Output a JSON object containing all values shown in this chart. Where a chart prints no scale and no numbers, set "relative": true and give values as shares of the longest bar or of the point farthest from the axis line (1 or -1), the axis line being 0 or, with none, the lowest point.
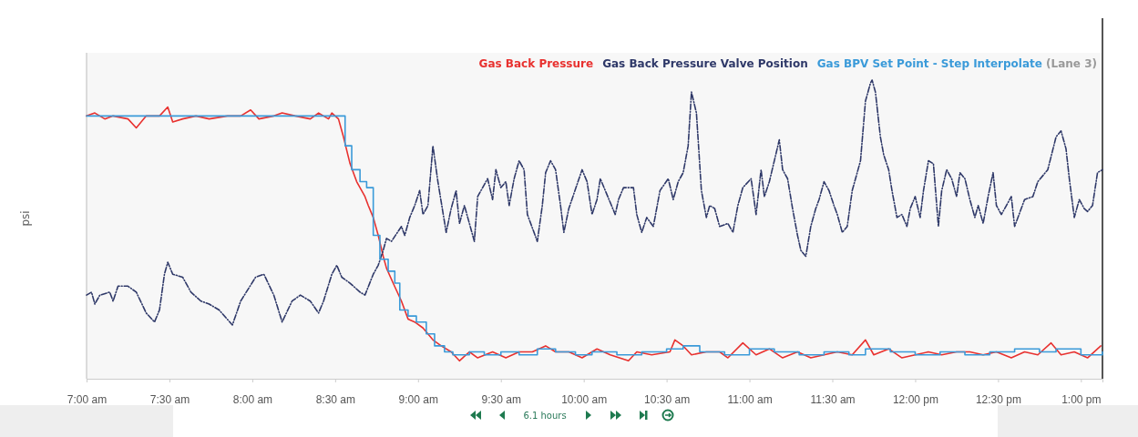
{
  "chart_data": {
    "type": "line",
    "relative": true,
    "ylabel": "psi",
    "legend": "top right",
    "annotations": [
      "(Lane 3)",
      "6.1 hours"
    ],
    "xlim": [
      7,
      13.13
    ],
    "xticks": [
      {
        "value": 7,
        "label": "7:00 am"
      },
      {
        "value": 7.5,
        "label": "7:30 am"
      },
      {
        "value": 8,
        "label": "8:00 am"
      },
      {
        "value": 8.5,
        "label": "8:30 am"
      },
      {
        "value": 9,
        "label": "9:00 am"
      },
      {
        "value": 9.5,
        "label": "9:30 am"
      },
      {
        "value": 10,
        "label": "10:00 am"
      },
      {
        "value": 10.5,
        "label": "10:30 am"
      },
      {
        "value": 11,
        "label": "11:00 am"
      },
      {
        "value": 11.5,
        "label": "11:30 am"
      },
      {
        "value": 12,
        "label": "12:00 pm"
      },
      {
        "value": 12.5,
        "label": "12:30 pm"
      },
      {
        "value": 13,
        "label": "1:00 pm"
      }
    ],
    "series": [
      {
        "name": "Gas Back Pressure",
        "color": "#e8312f",
        "type": "line",
        "line_style": "solid",
        "x": [
          7.0,
          7.05,
          7.11,
          7.16,
          7.25,
          7.3,
          7.36,
          7.44,
          7.49,
          7.52,
          7.58,
          7.66,
          7.74,
          7.85,
          7.93,
          7.99,
          8.04,
          8.13,
          8.18,
          8.26,
          8.35,
          8.4,
          8.46,
          8.48,
          8.52,
          8.55,
          8.59,
          8.63,
          8.68,
          8.7,
          8.73,
          8.76,
          8.79,
          8.81,
          8.85,
          8.9,
          8.94,
          8.98,
          9.03,
          9.09,
          9.14,
          9.2,
          9.25,
          9.31,
          9.36,
          9.45,
          9.53,
          9.61,
          9.69,
          9.77,
          9.83,
          9.91,
          9.99,
          10.08,
          10.16,
          10.27,
          10.32,
          10.41,
          10.52,
          10.55,
          10.6,
          10.65,
          10.74,
          10.82,
          10.87,
          10.96,
          11.04,
          11.12,
          11.2,
          11.29,
          11.37,
          11.45,
          11.53,
          11.62,
          11.7,
          11.75,
          11.84,
          11.92,
          12.0,
          12.08,
          12.16,
          12.25,
          12.33,
          12.41,
          12.49,
          12.58,
          12.66,
          12.74,
          12.82,
          12.88,
          12.96,
          13.04,
          13.12
        ],
        "values": [
          0.88,
          0.89,
          0.87,
          0.88,
          0.87,
          0.84,
          0.88,
          0.88,
          0.91,
          0.86,
          0.87,
          0.88,
          0.87,
          0.88,
          0.88,
          0.9,
          0.87,
          0.88,
          0.89,
          0.88,
          0.87,
          0.89,
          0.87,
          0.89,
          0.87,
          0.81,
          0.72,
          0.66,
          0.61,
          0.58,
          0.54,
          0.48,
          0.41,
          0.37,
          0.32,
          0.26,
          0.2,
          0.19,
          0.17,
          0.13,
          0.11,
          0.09,
          0.06,
          0.09,
          0.07,
          0.09,
          0.07,
          0.09,
          0.09,
          0.11,
          0.09,
          0.09,
          0.07,
          0.1,
          0.08,
          0.06,
          0.09,
          0.08,
          0.09,
          0.13,
          0.11,
          0.08,
          0.09,
          0.09,
          0.07,
          0.12,
          0.08,
          0.1,
          0.07,
          0.09,
          0.07,
          0.08,
          0.09,
          0.08,
          0.13,
          0.08,
          0.1,
          0.07,
          0.08,
          0.09,
          0.08,
          0.09,
          0.09,
          0.08,
          0.09,
          0.07,
          0.09,
          0.08,
          0.12,
          0.08,
          0.09,
          0.07,
          0.11
        ]
      },
      {
        "name": "Gas Back Pressure Valve Position",
        "color": "#2e3868",
        "type": "line",
        "line_style": "dashed",
        "x": [
          7.0,
          7.03,
          7.05,
          7.08,
          7.14,
          7.16,
          7.19,
          7.25,
          7.3,
          7.36,
          7.41,
          7.44,
          7.47,
          7.49,
          7.52,
          7.58,
          7.63,
          7.69,
          7.74,
          7.8,
          7.88,
          7.93,
          8.02,
          8.07,
          8.13,
          8.18,
          8.24,
          8.29,
          8.35,
          8.4,
          8.43,
          8.48,
          8.51,
          8.54,
          8.59,
          8.65,
          8.68,
          8.73,
          8.76,
          8.79,
          8.81,
          8.84,
          8.9,
          8.92,
          8.95,
          8.98,
          9.01,
          9.03,
          9.06,
          9.09,
          9.12,
          9.17,
          9.2,
          9.23,
          9.25,
          9.28,
          9.34,
          9.36,
          9.42,
          9.45,
          9.47,
          9.5,
          9.53,
          9.55,
          9.58,
          9.61,
          9.64,
          9.66,
          9.72,
          9.75,
          9.77,
          9.8,
          9.83,
          9.86,
          9.88,
          9.91,
          9.99,
          10.02,
          10.05,
          10.08,
          10.1,
          10.13,
          10.19,
          10.21,
          10.24,
          10.3,
          10.32,
          10.35,
          10.38,
          10.42,
          10.46,
          10.51,
          10.54,
          10.57,
          10.6,
          10.63,
          10.65,
          10.68,
          10.71,
          10.74,
          10.76,
          10.79,
          10.82,
          10.87,
          10.9,
          10.93,
          10.96,
          11.01,
          11.04,
          11.07,
          11.09,
          11.12,
          11.15,
          11.18,
          11.2,
          11.23,
          11.26,
          11.29,
          11.31,
          11.34,
          11.37,
          11.4,
          11.42,
          11.45,
          11.48,
          11.51,
          11.53,
          11.56,
          11.59,
          11.62,
          11.64,
          11.67,
          11.7,
          11.73,
          11.74,
          11.76,
          11.79,
          11.81,
          11.84,
          11.86,
          11.89,
          11.92,
          11.95,
          11.97,
          12.0,
          12.03,
          12.05,
          12.08,
          12.11,
          12.14,
          12.16,
          12.19,
          12.22,
          12.25,
          12.27,
          12.3,
          12.33,
          12.36,
          12.38,
          12.41,
          12.44,
          12.47,
          12.49,
          12.52,
          12.58,
          12.6,
          12.66,
          12.71,
          12.74,
          12.8,
          12.85,
          12.88,
          12.91,
          12.93,
          12.96,
          12.99,
          13.02,
          13.04,
          13.07,
          13.1,
          13.13
        ],
        "values": [
          0.28,
          0.29,
          0.25,
          0.28,
          0.29,
          0.26,
          0.31,
          0.31,
          0.29,
          0.22,
          0.19,
          0.23,
          0.35,
          0.39,
          0.35,
          0.34,
          0.29,
          0.26,
          0.25,
          0.23,
          0.18,
          0.26,
          0.34,
          0.35,
          0.28,
          0.19,
          0.26,
          0.28,
          0.26,
          0.22,
          0.26,
          0.35,
          0.38,
          0.34,
          0.32,
          0.29,
          0.28,
          0.35,
          0.38,
          0.43,
          0.47,
          0.46,
          0.51,
          0.48,
          0.54,
          0.58,
          0.63,
          0.55,
          0.58,
          0.78,
          0.66,
          0.49,
          0.57,
          0.63,
          0.52,
          0.58,
          0.46,
          0.61,
          0.67,
          0.6,
          0.7,
          0.64,
          0.66,
          0.58,
          0.67,
          0.73,
          0.7,
          0.55,
          0.46,
          0.58,
          0.69,
          0.73,
          0.7,
          0.58,
          0.49,
          0.57,
          0.7,
          0.66,
          0.55,
          0.6,
          0.67,
          0.63,
          0.55,
          0.6,
          0.64,
          0.64,
          0.55,
          0.49,
          0.54,
          0.51,
          0.63,
          0.67,
          0.6,
          0.66,
          0.69,
          0.78,
          0.96,
          0.89,
          0.63,
          0.54,
          0.58,
          0.57,
          0.51,
          0.52,
          0.49,
          0.58,
          0.64,
          0.67,
          0.55,
          0.7,
          0.61,
          0.66,
          0.73,
          0.8,
          0.7,
          0.67,
          0.57,
          0.48,
          0.43,
          0.41,
          0.51,
          0.57,
          0.6,
          0.66,
          0.63,
          0.58,
          0.55,
          0.49,
          0.51,
          0.63,
          0.67,
          0.73,
          0.93,
          0.99,
          1.0,
          0.96,
          0.81,
          0.75,
          0.7,
          0.63,
          0.54,
          0.55,
          0.51,
          0.57,
          0.61,
          0.54,
          0.63,
          0.73,
          0.72,
          0.51,
          0.63,
          0.7,
          0.67,
          0.61,
          0.69,
          0.67,
          0.6,
          0.54,
          0.58,
          0.52,
          0.61,
          0.69,
          0.58,
          0.55,
          0.61,
          0.51,
          0.6,
          0.61,
          0.66,
          0.7,
          0.81,
          0.83,
          0.77,
          0.67,
          0.54,
          0.6,
          0.57,
          0.56,
          0.58,
          0.69,
          0.7
        ]
      },
      {
        "name": "Gas BPV Set Point - Step Interpolate",
        "color": "#3a9ad9",
        "type": "step",
        "line_style": "solid",
        "x": [
          7.0,
          8.52,
          8.56,
          8.6,
          8.65,
          8.69,
          8.73,
          8.77,
          8.82,
          8.86,
          8.89,
          8.94,
          8.99,
          9.05,
          9.1,
          9.16,
          9.21,
          9.31,
          9.4,
          9.5,
          9.61,
          9.72,
          9.83,
          9.95,
          10.05,
          10.2,
          10.35,
          10.5,
          10.6,
          10.7,
          10.85,
          11.0,
          11.15,
          11.3,
          11.45,
          11.6,
          11.7,
          11.85,
          12.0,
          12.15,
          12.3,
          12.45,
          12.6,
          12.75,
          12.85,
          13.0,
          13.13
        ],
        "values": [
          0.88,
          0.88,
          0.78,
          0.7,
          0.66,
          0.64,
          0.48,
          0.4,
          0.36,
          0.32,
          0.23,
          0.21,
          0.19,
          0.15,
          0.11,
          0.09,
          0.08,
          0.09,
          0.08,
          0.09,
          0.08,
          0.1,
          0.09,
          0.08,
          0.09,
          0.08,
          0.09,
          0.1,
          0.11,
          0.09,
          0.08,
          0.1,
          0.09,
          0.08,
          0.09,
          0.08,
          0.1,
          0.09,
          0.08,
          0.09,
          0.08,
          0.09,
          0.1,
          0.09,
          0.1,
          0.08,
          0.09
        ]
      }
    ]
  }
}
